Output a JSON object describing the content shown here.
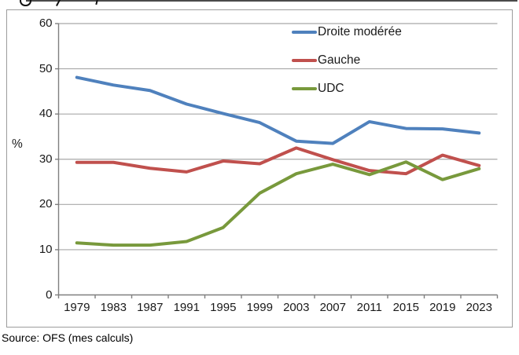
{
  "source_note": "Source: OFS (mes calculs)",
  "chart_data": {
    "type": "line",
    "title": "",
    "categories": [
      "1979",
      "1983",
      "1987",
      "1991",
      "1995",
      "1999",
      "2003",
      "2007",
      "2011",
      "2015",
      "2019",
      "2023"
    ],
    "series": [
      {
        "name": "Droite modérée",
        "color": "#4F81BD",
        "values": [
          48.1,
          46.4,
          45.2,
          42.2,
          40.1,
          38.1,
          34.0,
          33.5,
          38.3,
          36.8,
          36.7,
          35.8
        ]
      },
      {
        "name": "Gauche",
        "color": "#C0504D",
        "values": [
          29.3,
          29.3,
          28.0,
          27.2,
          29.6,
          29.0,
          32.5,
          29.9,
          27.5,
          26.8,
          30.9,
          28.6
        ]
      },
      {
        "name": "UDC",
        "color": "#78993C",
        "values": [
          11.5,
          11.0,
          11.0,
          11.8,
          14.9,
          22.5,
          26.8,
          28.9,
          26.6,
          29.4,
          25.5,
          27.9
        ]
      }
    ],
    "ylabel": "%",
    "ylim": [
      0,
      60
    ],
    "yticks": [
      0,
      10,
      20,
      30,
      40,
      50,
      60
    ],
    "grid": true,
    "legend_position": "top-right-inside",
    "colors": {
      "gridline": "#A8A8A8",
      "axis": "#7F7F7F",
      "frame_border": "#9C9C9C",
      "text": "#1A1A1A"
    }
  }
}
